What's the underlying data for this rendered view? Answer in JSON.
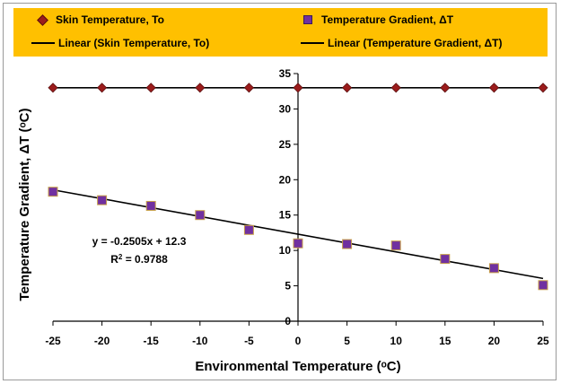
{
  "chart_data": {
    "type": "scatter",
    "xlabel": "Environmental Temperature (ᵒC)",
    "ylabel": "Temperature Gradient, ΔT (ᵒC)",
    "xlim": [
      -25,
      25
    ],
    "ylim": [
      0,
      35
    ],
    "x_ticks": [
      "-25",
      "-20",
      "-15",
      "-10",
      "-5",
      "0",
      "5",
      "10",
      "15",
      "20",
      "25"
    ],
    "y_ticks": [
      "0",
      "5",
      "10",
      "15",
      "20",
      "25",
      "30",
      "35"
    ],
    "grid": false,
    "legend_position": "top",
    "series": [
      {
        "name": "Skin Temperature, To",
        "marker": "diamond",
        "color": "#9b1c1c",
        "x": [
          -25,
          -20,
          -15,
          -10,
          -5,
          0,
          5,
          10,
          15,
          20,
          25
        ],
        "y": [
          33,
          33,
          33,
          33,
          33,
          33,
          33,
          33,
          33,
          33,
          33
        ]
      },
      {
        "name": "Temperature Gradient, ΔT",
        "marker": "square",
        "color": "#7030a0",
        "x": [
          -25,
          -20,
          -15,
          -10,
          -5,
          0,
          5,
          10,
          15,
          20,
          25
        ],
        "y": [
          18.3,
          17.1,
          16.3,
          15.0,
          12.9,
          11.0,
          10.9,
          10.7,
          8.8,
          7.5,
          5.1
        ]
      }
    ],
    "trendlines": [
      {
        "name": "Linear (Skin Temperature, To)",
        "slope": 0,
        "intercept": 33,
        "color": "#000000"
      },
      {
        "name": "Linear (Temperature Gradient,  ΔT)",
        "slope": -0.2505,
        "intercept": 12.3,
        "color": "#000000"
      }
    ],
    "annotations": {
      "equation": "y = -0.2505x + 12.3",
      "r2_prefix": "R",
      "r2_sup": "2",
      "r2_value": " = 0.9788"
    }
  },
  "legend": {
    "item1": "Skin Temperature, To",
    "item2": "Temperature Gradient,  ΔT",
    "item3": "Linear (Skin Temperature, To)",
    "item4": "Linear (Temperature Gradient,  ΔT)"
  }
}
